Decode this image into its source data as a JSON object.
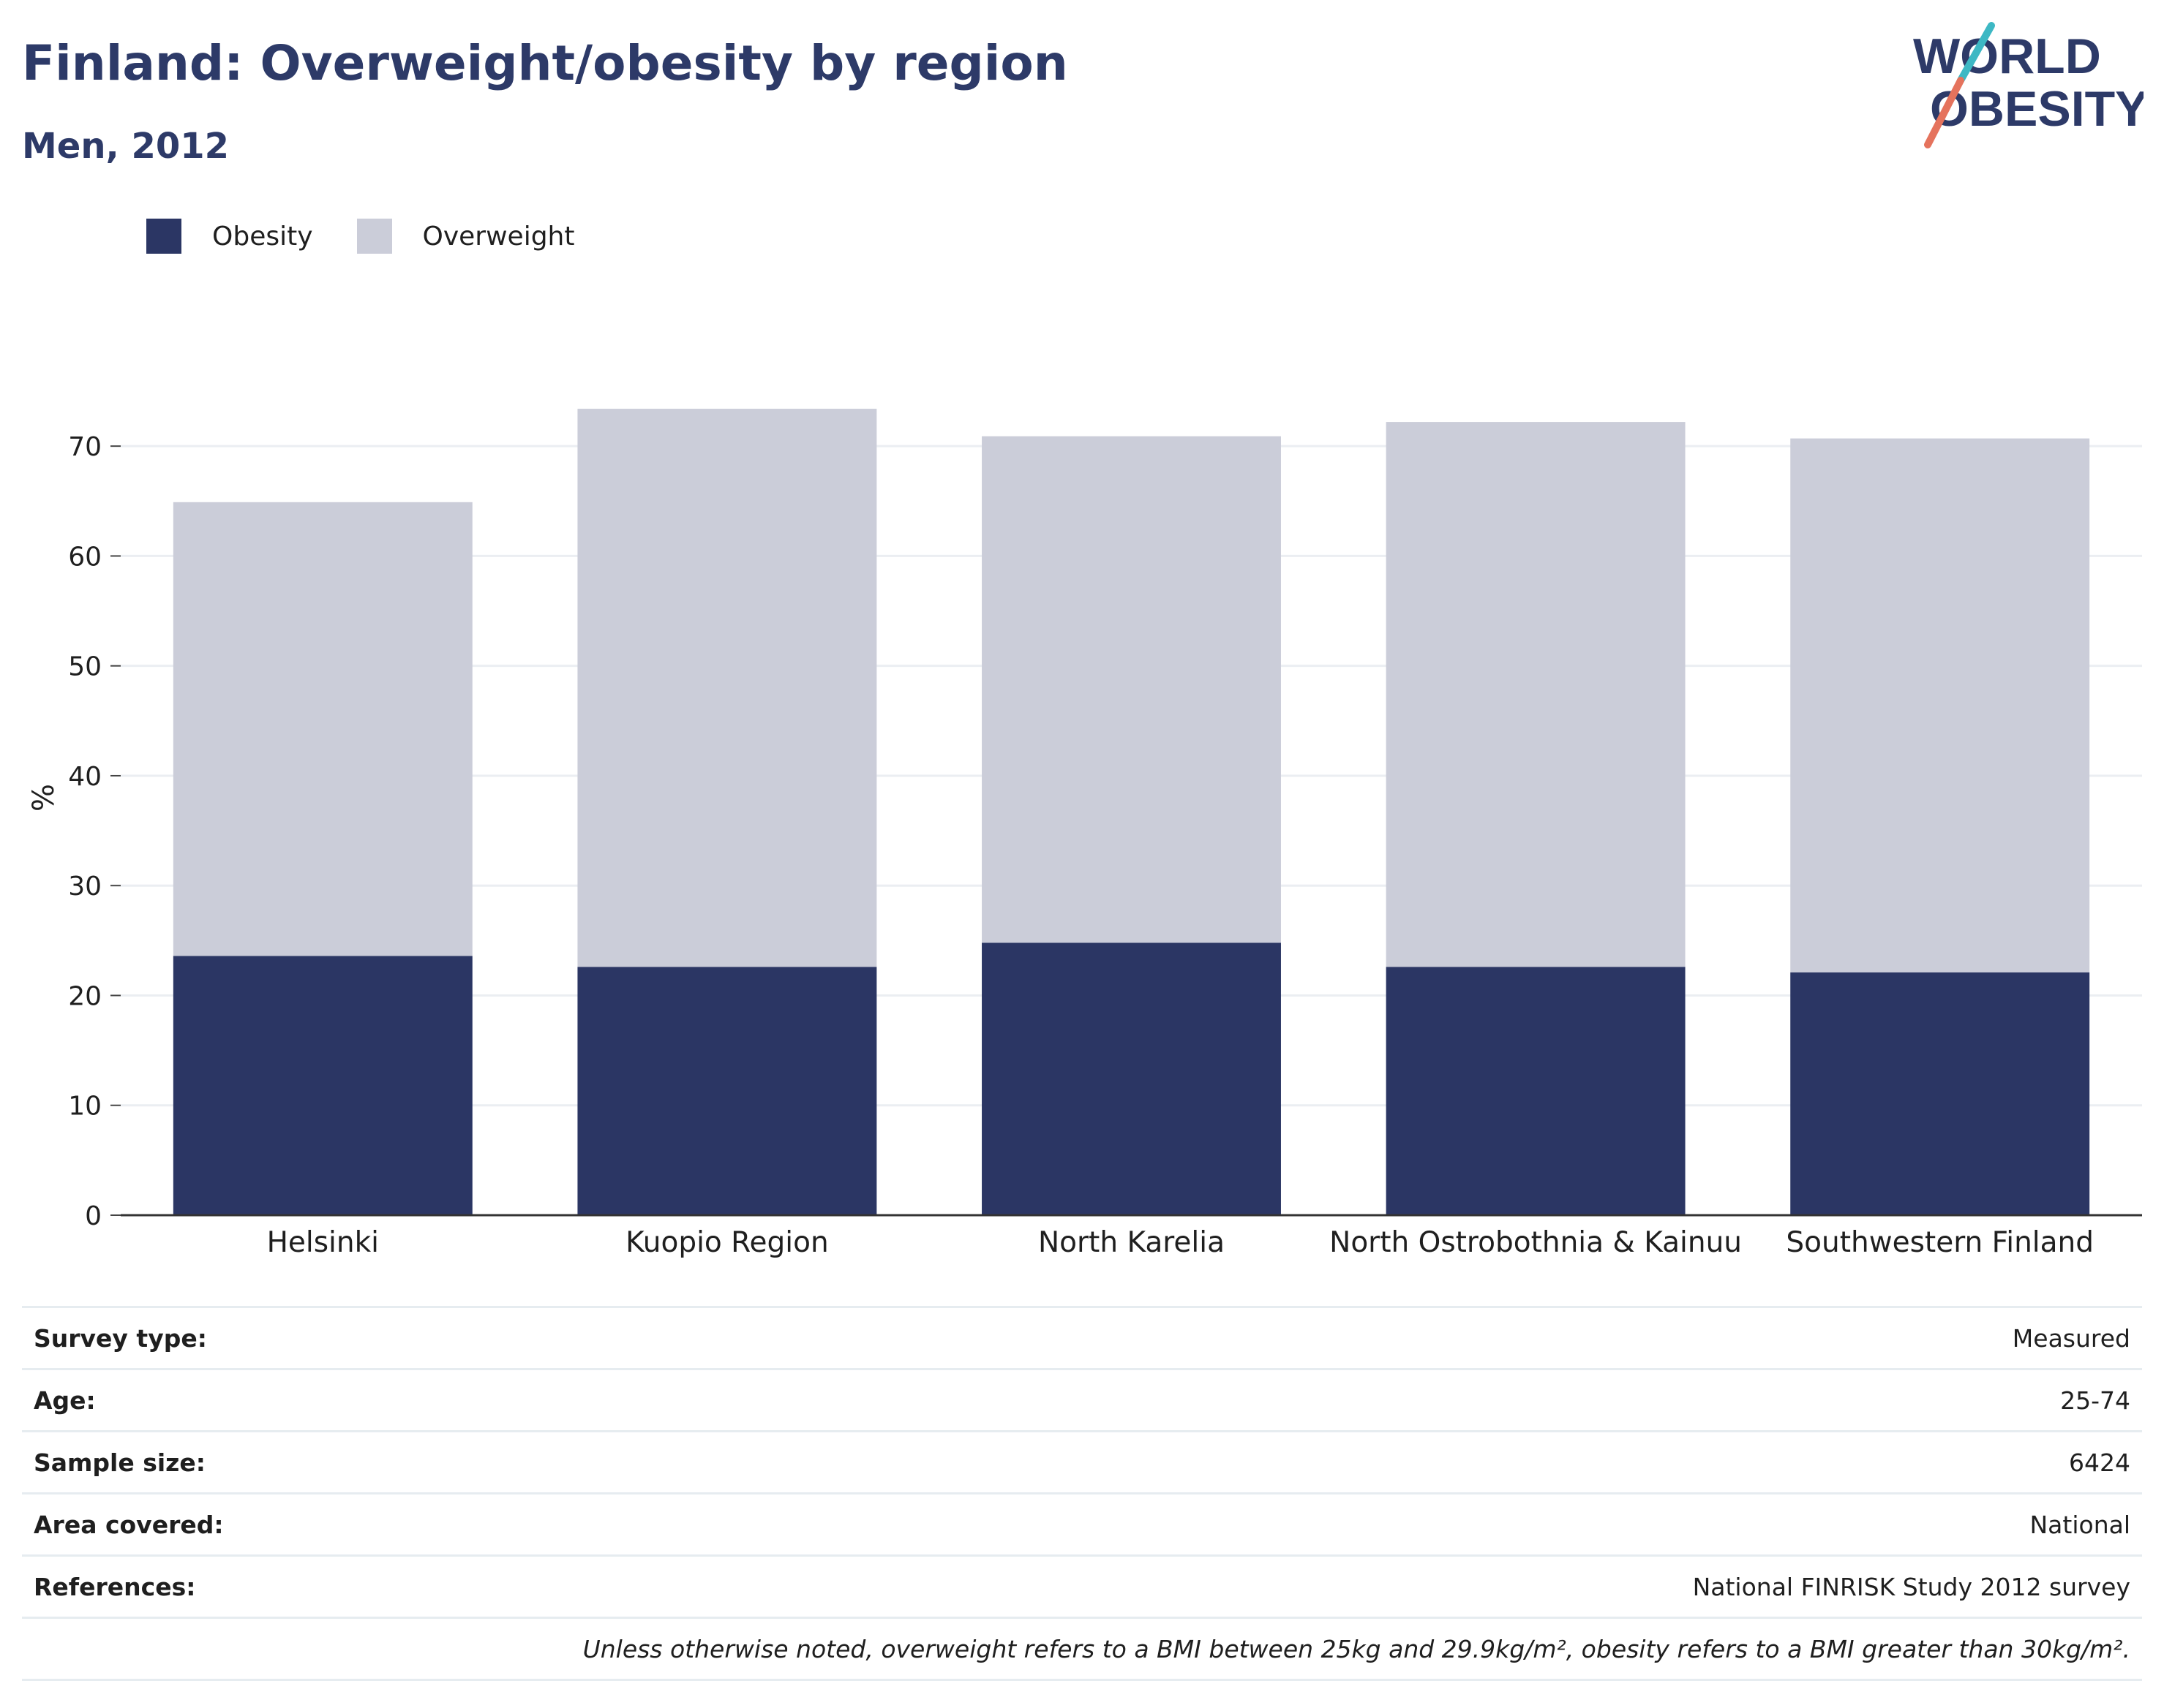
{
  "header": {
    "title": "Finland: Overweight/obesity by region",
    "subtitle": "Men, 2012"
  },
  "logo": {
    "line1": "WORLD",
    "line2": "OBESITY",
    "colors": {
      "text": "#2d3a68",
      "slash_top": "#3db8c4",
      "slash_bottom": "#e5735d"
    }
  },
  "legend": {
    "items": [
      {
        "label": "Obesity",
        "color": "#2b3664"
      },
      {
        "label": "Overweight",
        "color": "#cbcdd9"
      }
    ]
  },
  "chart_data": {
    "type": "bar",
    "stacked": true,
    "categories": [
      "Helsinki",
      "Kuopio Region",
      "North Karelia",
      "North Ostrobothnia & Kainuu",
      "Southwestern Finland"
    ],
    "series": [
      {
        "name": "Obesity",
        "color": "#2b3664",
        "values": [
          23.6,
          22.6,
          24.8,
          22.6,
          22.1
        ]
      },
      {
        "name": "Overweight",
        "color": "#cbcdd9",
        "values": [
          41.3,
          50.8,
          46.1,
          49.6,
          48.6
        ]
      }
    ],
    "ylabel": "%",
    "ylim": [
      0,
      76
    ],
    "yticks": [
      0,
      10,
      20,
      30,
      40,
      50,
      60,
      70
    ],
    "grid": true,
    "legend_position": "top-left"
  },
  "info": {
    "rows": [
      {
        "key": "Survey type:",
        "value": "Measured"
      },
      {
        "key": "Age:",
        "value": "25-74"
      },
      {
        "key": "Sample size:",
        "value": "6424"
      },
      {
        "key": "Area covered:",
        "value": "National"
      },
      {
        "key": "References:",
        "value": "National FINRISK Study 2012 survey"
      }
    ],
    "footnote": "Unless otherwise noted, overweight refers to a BMI between 25kg and 29.9kg/m², obesity refers to a BMI greater than 30kg/m²."
  }
}
